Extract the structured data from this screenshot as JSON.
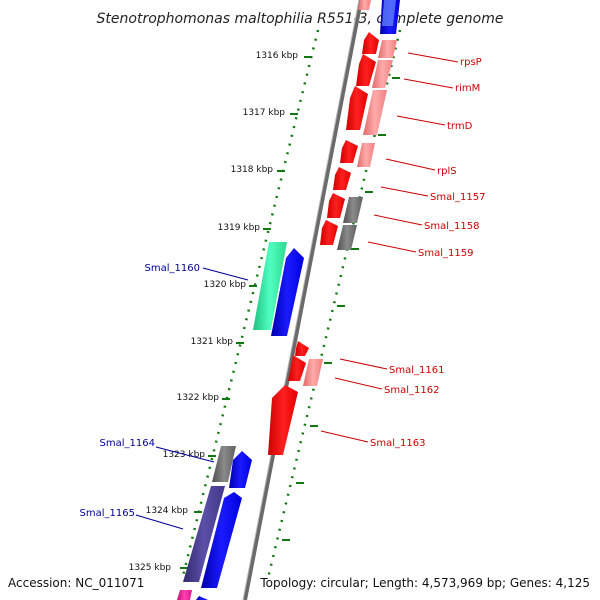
{
  "title": "Stenotrophomonas maltophilia R551-3, complete genome",
  "footer": {
    "accession": "Accession: NC_011071",
    "summary": "Topology: circular; Length: 4,573,969 bp; Genes: 4,125"
  },
  "ticks": [
    "1316 kbp",
    "1317 kbp",
    "1318 kbp",
    "1319 kbp",
    "1320 kbp",
    "1321 kbp",
    "1322 kbp",
    "1323 kbp",
    "1324 kbp",
    "1325 kbp"
  ],
  "genes_red": [
    "rpsP",
    "rimM",
    "trmD",
    "rplS",
    "Smal_1157",
    "Smal_1158",
    "Smal_1159",
    "Smal_1161",
    "Smal_1162",
    "Smal_1163"
  ],
  "genes_blue": [
    "Smal_1160",
    "Smal_1164",
    "Smal_1165"
  ],
  "colors": {
    "forward_cds": "#ff0000",
    "forward_cds_light": "#f58080",
    "reverse_cds": "#0000ee",
    "hypothetical": "#707070",
    "teal_feature": "#33e6a0",
    "purple_feature": "#4a4090",
    "magenta_feature": "#e6199a",
    "backbone": "#808080",
    "tick_marks": "#117711",
    "label_red": "#cc0000",
    "label_blue": "#000099"
  }
}
